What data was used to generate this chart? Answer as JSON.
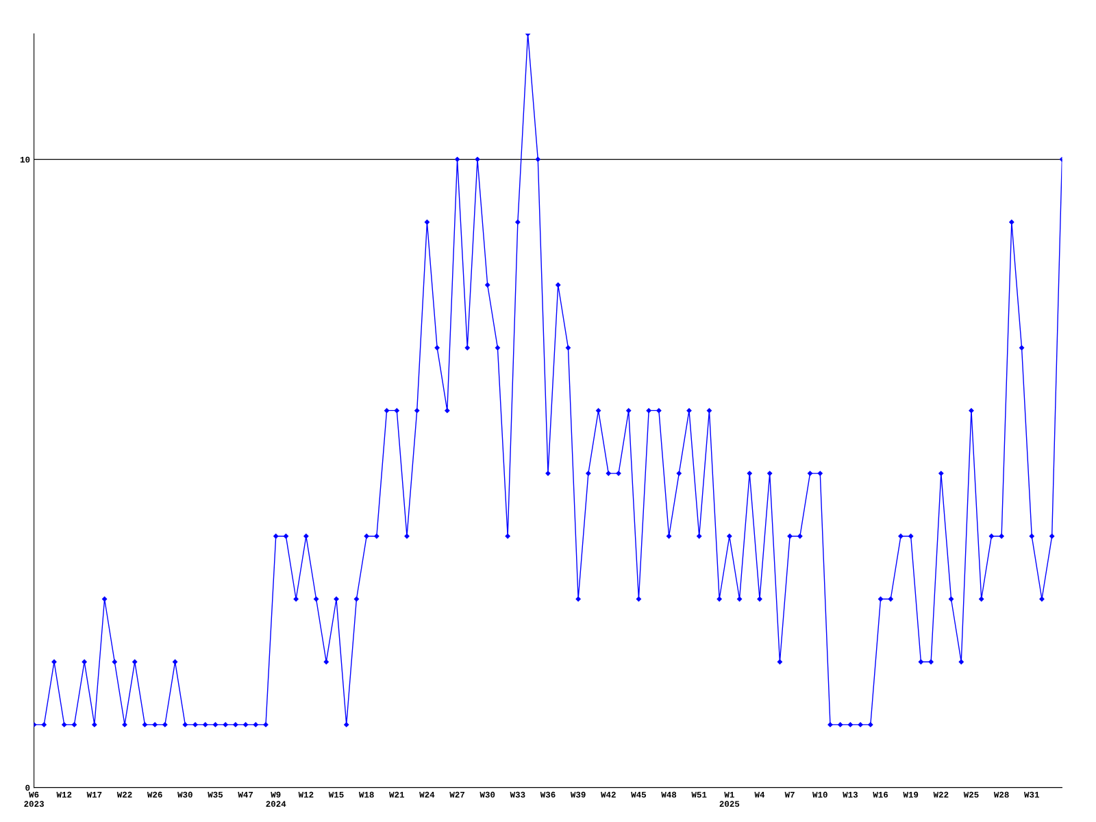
{
  "chart_data": {
    "type": "line",
    "categories": [
      "W6\n2023",
      null,
      null,
      "W12",
      null,
      null,
      "W17",
      null,
      null,
      "W22",
      null,
      null,
      "W26",
      null,
      null,
      "W30",
      null,
      null,
      "W35",
      null,
      null,
      "W47",
      null,
      null,
      "W9\n2024",
      null,
      null,
      "W12",
      null,
      null,
      "W15",
      null,
      null,
      "W18",
      null,
      null,
      "W21",
      null,
      null,
      "W24",
      null,
      null,
      "W27",
      null,
      null,
      "W30",
      null,
      null,
      "W33",
      null,
      null,
      "W36",
      null,
      null,
      "W39",
      null,
      null,
      "W42",
      null,
      null,
      "W45",
      null,
      null,
      "W48",
      null,
      null,
      "W51",
      null,
      null,
      "W1\n2025",
      null,
      null,
      "W4",
      null,
      null,
      "W7",
      null,
      null,
      "W10",
      null,
      null,
      "W13",
      null,
      null,
      "W16",
      null,
      null,
      "W19",
      null,
      null,
      "W22",
      null,
      null,
      "W25",
      null,
      null,
      "W28",
      null,
      null,
      "W31",
      null,
      null,
      null
    ],
    "series": [
      {
        "color": "#0000ff",
        "values": [
          1,
          1,
          2,
          1,
          1,
          2,
          1,
          3,
          2,
          1,
          2,
          1,
          1,
          1,
          2,
          1,
          1,
          1,
          1,
          1,
          1,
          1,
          1,
          1,
          4,
          4,
          3,
          4,
          3,
          2,
          3,
          1,
          3,
          4,
          4,
          6,
          6,
          4,
          6,
          9,
          7,
          6,
          10,
          7,
          10,
          8,
          7,
          4,
          9,
          12,
          10,
          5,
          8,
          7,
          3,
          5,
          6,
          5,
          5,
          6,
          3,
          6,
          6,
          4,
          5,
          6,
          4,
          6,
          3,
          4,
          3,
          5,
          3,
          5,
          2,
          4,
          4,
          5,
          5,
          1,
          1,
          1,
          1,
          1,
          3,
          3,
          4,
          4,
          2,
          2,
          5,
          3,
          2,
          6,
          3,
          4,
          4,
          9,
          7,
          4,
          3,
          4,
          10
        ]
      }
    ],
    "ylim": [
      0,
      12
    ],
    "yticks": [
      0,
      10
    ],
    "grid": "y",
    "marker": "diamond",
    "line_style": "solid"
  }
}
